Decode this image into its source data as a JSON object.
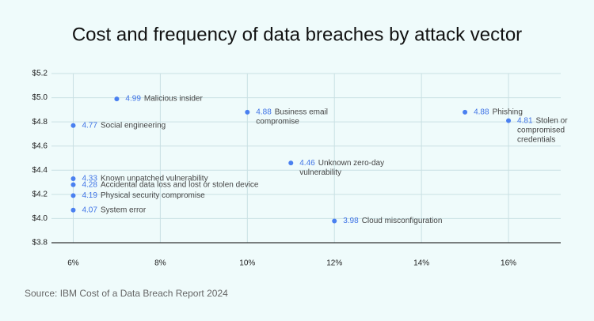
{
  "chart_data": {
    "type": "scatter",
    "title": "Cost and frequency of data breaches by attack vector",
    "source": "Source: IBM Cost of a Data Breach Report 2024",
    "x": [
      7,
      10,
      15,
      16,
      6,
      11,
      6,
      6,
      6,
      6,
      12
    ],
    "values": [
      4.99,
      4.88,
      4.88,
      4.81,
      4.77,
      4.46,
      4.33,
      4.28,
      4.19,
      4.07,
      3.98
    ],
    "labels": [
      [
        "Malicious insider"
      ],
      [
        "Business email",
        "compromise"
      ],
      [
        "Phishing"
      ],
      [
        "Stolen or",
        "compromised",
        "credentials"
      ],
      [
        "Social engineering"
      ],
      [
        "Unknown zero-day",
        "vulnerability"
      ],
      [
        "Known unpatched vulnerability"
      ],
      [
        "Accidental data loss and lost or stolen device"
      ],
      [
        "Physical security compromise"
      ],
      [
        "System error"
      ],
      [
        "Cloud misconfiguration"
      ]
    ],
    "color": "#4a80f0",
    "xlim": [
      5.5,
      17.2
    ],
    "ylim": [
      3.8,
      5.2
    ],
    "xticks": [
      {
        "value": 6,
        "label": "6%"
      },
      {
        "value": 8,
        "label": "8%"
      },
      {
        "value": 10,
        "label": "10%"
      },
      {
        "value": 12,
        "label": "12%"
      },
      {
        "value": 14,
        "label": "14%"
      },
      {
        "value": 16,
        "label": "16%"
      }
    ],
    "yticks": [
      {
        "value": 3.8,
        "label": "$3.8"
      },
      {
        "value": 4.0,
        "label": "$4.0"
      },
      {
        "value": 4.2,
        "label": "$4.2"
      },
      {
        "value": 4.4,
        "label": "$4.4"
      },
      {
        "value": 4.6,
        "label": "$4.6"
      },
      {
        "value": 4.8,
        "label": "$4.8"
      },
      {
        "value": 5.0,
        "label": "$5.0"
      },
      {
        "value": 5.2,
        "label": "$5.2"
      }
    ],
    "grid": true
  }
}
